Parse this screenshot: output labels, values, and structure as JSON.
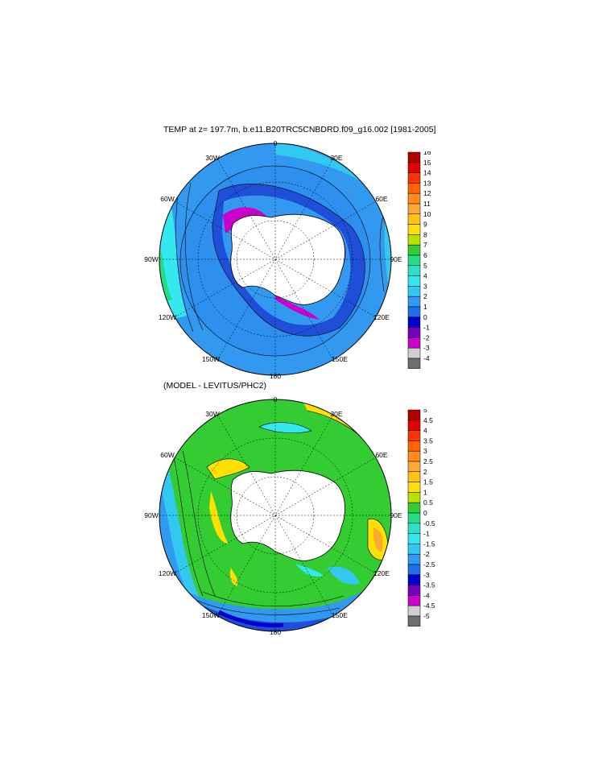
{
  "panels": [
    {
      "id": "top",
      "title": "TEMP at z= 197.7m, b.e11.B20TRC5CNBDRD.f09_g16.002 [1981-2005]",
      "lon_labels": [
        "0",
        "30E",
        "60E",
        "90E",
        "120E",
        "150E",
        "180",
        "150W",
        "120W",
        "90W",
        "60W",
        "30W"
      ],
      "colorbar": {
        "labels": [
          "16",
          "15",
          "14",
          "13",
          "12",
          "11",
          "10",
          "9",
          "8",
          "7",
          "6",
          "5",
          "4",
          "3",
          "2",
          "1",
          "0",
          "-1",
          "-2",
          "-3",
          "-4"
        ],
        "colors": [
          "#b00000",
          "#e00000",
          "#ff3300",
          "#ff6600",
          "#ff8c1a",
          "#ffa733",
          "#ffc21a",
          "#ffe000",
          "#b8e000",
          "#33cc33",
          "#22dd88",
          "#33ddcc",
          "#33e8ee",
          "#33c8f0",
          "#3399f0",
          "#1f6fe8",
          "#0000cc",
          "#7700bb",
          "#cc00cc",
          "#d0d0d0",
          "#6e6e6e"
        ]
      }
    },
    {
      "id": "bottom",
      "title": "(MODEL - LEVITUS/PHC2)",
      "lon_labels": [
        "0",
        "30E",
        "60E",
        "90E",
        "120E",
        "150E",
        "180",
        "150W",
        "120W",
        "90W",
        "60W",
        "30W"
      ],
      "colorbar": {
        "labels": [
          "5",
          "4.5",
          "4",
          "3.5",
          "3",
          "2.5",
          "2",
          "1.5",
          "1",
          "0.5",
          "0",
          "-0.5",
          "-1",
          "-1.5",
          "-2",
          "-2.5",
          "-3",
          "-3.5",
          "-4",
          "-4.5",
          "-5"
        ],
        "colors": [
          "#b00000",
          "#e00000",
          "#ff3300",
          "#ff6600",
          "#ff8c1a",
          "#ffa733",
          "#ffc21a",
          "#ffe000",
          "#b8e000",
          "#33cc33",
          "#22dd88",
          "#33ddcc",
          "#33e8ee",
          "#33c8f0",
          "#3399f0",
          "#1f6fe8",
          "#0000cc",
          "#7700bb",
          "#cc00cc",
          "#d0d0d0",
          "#6e6e6e"
        ]
      }
    }
  ]
}
